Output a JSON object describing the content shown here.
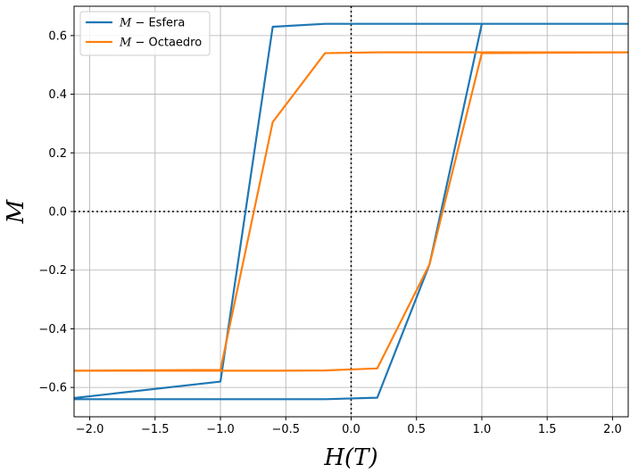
{
  "chart_data": {
    "type": "line",
    "xlabel": "H(T)",
    "ylabel": "M",
    "xlim": [
      -2.12,
      2.12
    ],
    "ylim": [
      -0.7,
      0.7
    ],
    "xticks": [
      -2.0,
      -1.5,
      -1.0,
      -0.5,
      0.0,
      0.5,
      1.0,
      1.5,
      2.0
    ],
    "xtick_labels": [
      "−2.0",
      "−1.5",
      "−1.0",
      "−0.5",
      "0.0",
      "0.5",
      "1.0",
      "1.5",
      "2.0"
    ],
    "yticks": [
      -0.6,
      -0.4,
      -0.2,
      0.0,
      0.2,
      0.4,
      0.6
    ],
    "ytick_labels": [
      "−0.6",
      "−0.4",
      "−0.2",
      "0.0",
      "0.2",
      "0.4",
      "0.6"
    ],
    "grid": true,
    "legend_position": "top-left",
    "reference_lines": {
      "x": 0,
      "y": 0,
      "style": "dotted"
    },
    "series": [
      {
        "name": "M − Esfera",
        "legend_var": "M",
        "legend_rest": "Esfera",
        "color": "#1f77b4",
        "x": [
          2.2,
          1.0,
          0.6,
          0.2,
          -0.2,
          -0.6,
          -1.0,
          -1.4,
          -2.2,
          -1.0,
          -0.6,
          -0.2,
          0.2,
          0.6,
          1.0,
          2.2
        ],
        "y": [
          0.64,
          0.64,
          -0.18,
          -0.635,
          -0.64,
          -0.64,
          -0.64,
          -0.64,
          -0.64,
          -0.58,
          0.63,
          0.64,
          0.64,
          0.64,
          0.64,
          0.64
        ]
      },
      {
        "name": "M − Octaedro",
        "legend_var": "M",
        "legend_rest": "Octaedro",
        "color": "#ff7f0e",
        "x": [
          2.2,
          1.0,
          0.6,
          0.2,
          -0.2,
          -0.6,
          -1.0,
          -1.4,
          -2.2,
          -1.0,
          -0.6,
          -0.2,
          0.2,
          0.6,
          1.0,
          2.2
        ],
        "y": [
          0.543,
          0.54,
          -0.18,
          -0.535,
          -0.542,
          -0.543,
          -0.543,
          -0.543,
          -0.543,
          -0.54,
          0.305,
          0.54,
          0.543,
          0.543,
          0.543,
          0.543
        ]
      }
    ]
  }
}
